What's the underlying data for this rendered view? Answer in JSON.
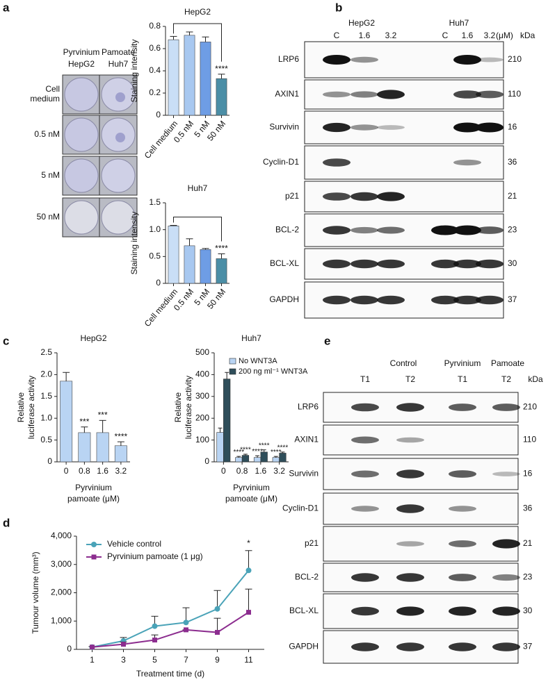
{
  "panel_labels": [
    "a",
    "b",
    "c",
    "d",
    "e"
  ],
  "colony": {
    "header": [
      "Pyrvinium",
      "Pamoate"
    ],
    "cols": [
      "HepG2",
      "Huh7"
    ],
    "rows": [
      "Cell medium",
      "0.5 nM",
      "5 nM",
      "50 nM"
    ]
  },
  "blot_b": {
    "groups": [
      "HepG2",
      "Huh7"
    ],
    "lanes": [
      "C",
      "1.6",
      "3.2",
      "C",
      "1.6",
      "3.2"
    ],
    "unit": "(μM)",
    "kda_label": "kDa",
    "proteins": [
      "LRP6",
      "AXIN1",
      "Survivin",
      "Cyclin-D1",
      "p21",
      "BCL-2",
      "BCL-XL",
      "GAPDH"
    ],
    "kda": [
      "210",
      "110",
      "16",
      "36",
      "21",
      "23",
      "30",
      "37"
    ]
  },
  "blot_e": {
    "groups": [
      "Control",
      "Pyrvinium",
      "Pamoate"
    ],
    "lanes": [
      "T1",
      "T2",
      "T1",
      "T2"
    ],
    "kda_label": "kDa",
    "proteins": [
      "LRP6",
      "AXIN1",
      "Survivin",
      "Cyclin-D1",
      "p21",
      "BCL-2",
      "BCL-XL",
      "GAPDH"
    ],
    "kda": [
      "210",
      "110",
      "16",
      "36",
      "21",
      "23",
      "30",
      "37"
    ]
  },
  "chart_data": [
    {
      "type": "bar",
      "title": "HepG2",
      "y_label": [
        "Staining intensity"
      ],
      "categories": [
        "Cell medium",
        "0.5 nM",
        "5 nM",
        "50 nM"
      ],
      "values": [
        0.68,
        0.72,
        0.66,
        0.33
      ],
      "errors": [
        0.03,
        0.03,
        0.045,
        0.04
      ],
      "colors": [
        "#c9def6",
        "#a8c8f0",
        "#6e9de5",
        "#4b8ea6"
      ],
      "significance": [
        null,
        null,
        null,
        "****"
      ],
      "bracket": true,
      "ylim": [
        0,
        0.8
      ],
      "yticks": [
        0,
        0.2,
        0.4,
        0.6,
        0.8
      ],
      "rotate_labels": true
    },
    {
      "type": "bar",
      "title": "Huh7",
      "y_label": [
        "Staining intensity"
      ],
      "categories": [
        "Cell medium",
        "0.5 nM",
        "5 nM",
        "50 nM"
      ],
      "values": [
        1.07,
        0.7,
        0.63,
        0.46
      ],
      "errors": [
        0.01,
        0.13,
        0.02,
        0.09
      ],
      "colors": [
        "#c9def6",
        "#a8c8f0",
        "#6e9de5",
        "#4b8ea6"
      ],
      "significance": [
        null,
        null,
        null,
        "****"
      ],
      "bracket": true,
      "ylim": [
        0,
        1.5
      ],
      "yticks": [
        0,
        0.5,
        {
          "value": 1,
          "label": "1.0"
        },
        1.5
      ],
      "rotate_labels": true
    },
    {
      "type": "bar",
      "title": "HepG2",
      "y_label": [
        "Relative",
        "luciferase activity"
      ],
      "x_label": [
        "Pyrvinium",
        "pamoate (μM)"
      ],
      "categories": [
        "0",
        "0.8",
        "1.6",
        "3.2"
      ],
      "values": [
        1.85,
        0.67,
        0.67,
        0.37
      ],
      "errors": [
        0.2,
        0.13,
        0.28,
        0.09
      ],
      "colors": [
        "#b9d4f3",
        "#b9d4f3",
        "#b9d4f3",
        "#b9d4f3"
      ],
      "significance": [
        null,
        "***",
        "***",
        "****"
      ],
      "ylim": [
        0,
        2.5
      ],
      "yticks": [
        0,
        0.5,
        {
          "value": 1,
          "label": "1.0"
        },
        1.5,
        {
          "value": 2,
          "label": "2.0"
        },
        2.5
      ]
    },
    {
      "type": "grouped_bar",
      "title": "Huh7",
      "y_label": [
        "Relative",
        "luciferase activity"
      ],
      "x_label": [
        "Pyrvinium",
        "pamoate (μM)"
      ],
      "categories": [
        "0",
        "0.8",
        "1.6",
        "3.2"
      ],
      "series": [
        {
          "name": "No WNT3A",
          "color": "#b9d4f3",
          "values": [
            135,
            20,
            20,
            20
          ],
          "errors": [
            20,
            5,
            8,
            5
          ],
          "significance": [
            null,
            "****",
            "****",
            "****"
          ]
        },
        {
          "name": "200 ng ml⁻¹ WNT3A",
          "color": "#2f4e5a",
          "values": [
            380,
            30,
            45,
            40
          ],
          "errors": [
            30,
            5,
            10,
            5
          ],
          "significance": [
            null,
            "****",
            "****",
            "****"
          ]
        }
      ],
      "ylim": [
        0,
        500
      ],
      "yticks": [
        0,
        100,
        200,
        300,
        400,
        500
      ]
    },
    {
      "type": "line",
      "x_label": "Treatment time (d)",
      "y_label": [
        "Tumour volume (mm³)"
      ],
      "x": [
        1,
        3,
        5,
        7,
        9,
        11
      ],
      "series": [
        {
          "name": "Vehicle control",
          "color": "#4aa3b8",
          "marker": "circle",
          "values": [
            80,
            300,
            820,
            950,
            1430,
            2790
          ],
          "errors": [
            20,
            120,
            350,
            520,
            650,
            700
          ]
        },
        {
          "name": "Pyrvinium pamoate (1 μg)",
          "color": "#8c2d8f",
          "marker": "square",
          "values": [
            80,
            180,
            330,
            690,
            600,
            1310
          ],
          "errors": [
            20,
            80,
            180,
            0,
            500,
            820
          ]
        }
      ],
      "annotation": {
        "x": 11,
        "text": "*"
      },
      "xlim": [
        0,
        12
      ],
      "xticks": [
        1,
        3,
        5,
        7,
        9,
        11
      ],
      "ylim": [
        0,
        4000
      ],
      "yticks": [
        0,
        {
          "value": 1000,
          "label": "1,000"
        },
        {
          "value": 2000,
          "label": "2,000"
        },
        {
          "value": 3000,
          "label": "3,000"
        },
        {
          "value": 4000,
          "label": "4,000"
        }
      ]
    }
  ]
}
